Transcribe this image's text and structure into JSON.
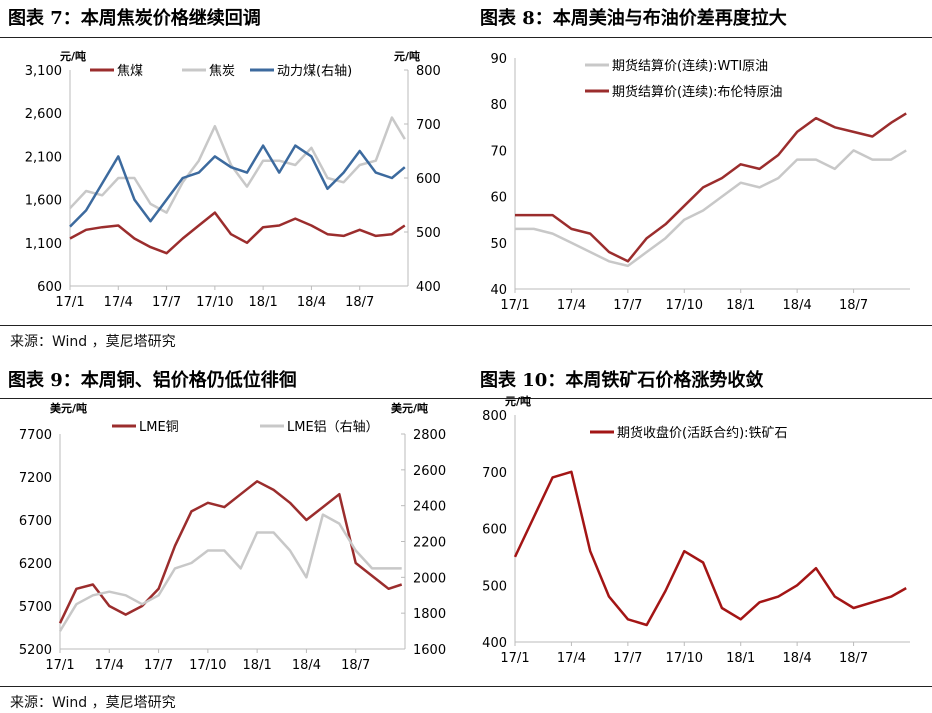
{
  "titles": [
    "图表 7：本周焦炭价格继续回调",
    "图表 8：本周美油与布油价差再度拉大",
    "图表 9：本周铜、铝价格仍低位徘徊",
    "图表 10：本周铁矿石价格涨势收敛"
  ],
  "source": "来源：Wind ，莫尼塔研究",
  "chart_data": [
    {
      "type": "line",
      "title": "图表 7：本周焦炭价格继续回调",
      "xticks": [
        "17/1",
        "17/4",
        "17/7",
        "17/10",
        "18/1",
        "18/4",
        "18/7"
      ],
      "xunit": "month index from 2017-01",
      "x": [
        0,
        1,
        2,
        3,
        4,
        5,
        6,
        7,
        8,
        9,
        10,
        11,
        12,
        13,
        14,
        15,
        16,
        17,
        18,
        19,
        20,
        20.8
      ],
      "ylabel_left": "元/吨",
      "ylabel_right": "元/吨",
      "ylim_left": [
        600,
        3100
      ],
      "ylim_right": [
        400,
        800
      ],
      "yticks_left": [
        "600",
        "1,100",
        "1,600",
        "2,100",
        "2,600",
        "3,100"
      ],
      "yticks_right": [
        "400",
        "500",
        "600",
        "700",
        "800"
      ],
      "series": [
        {
          "name": "焦煤",
          "axis": "left",
          "color": "#9b2d2d",
          "values": [
            1150,
            1250,
            1280,
            1300,
            1150,
            1050,
            980,
            1150,
            1300,
            1450,
            1200,
            1100,
            1280,
            1300,
            1380,
            1300,
            1200,
            1180,
            1250,
            1180,
            1200,
            1300
          ]
        },
        {
          "name": "焦炭",
          "axis": "left",
          "color": "#c8c8c8",
          "values": [
            1500,
            1700,
            1650,
            1850,
            1850,
            1550,
            1450,
            1800,
            2050,
            2450,
            2000,
            1750,
            2050,
            2050,
            2000,
            2200,
            1850,
            1800,
            2000,
            2050,
            2550,
            2300
          ]
        },
        {
          "name": "动力煤(右轴)",
          "axis": "right",
          "color": "#3c6a9e",
          "values": [
            510,
            540,
            590,
            640,
            560,
            520,
            560,
            600,
            610,
            640,
            620,
            610,
            660,
            610,
            660,
            640,
            580,
            610,
            650,
            610,
            600,
            620
          ]
        }
      ]
    },
    {
      "type": "line",
      "title": "图表 8：本周美油与布油价差再度拉大",
      "xticks": [
        "17/1",
        "17/4",
        "17/7",
        "17/10",
        "18/1",
        "18/4",
        "18/7"
      ],
      "x": [
        0,
        1,
        2,
        3,
        4,
        5,
        6,
        7,
        8,
        9,
        10,
        11,
        12,
        13,
        14,
        15,
        16,
        17,
        18,
        19,
        20,
        20.8
      ],
      "ylim_left": [
        40,
        90
      ],
      "yticks_left": [
        "40",
        "50",
        "60",
        "70",
        "80",
        "90"
      ],
      "series": [
        {
          "name": "期货结算价(连续):WTI原油",
          "axis": "left",
          "color": "#c8c8c8",
          "values": [
            53,
            53,
            52,
            50,
            48,
            46,
            45,
            48,
            51,
            55,
            57,
            60,
            63,
            62,
            64,
            68,
            68,
            66,
            70,
            68,
            68,
            70
          ]
        },
        {
          "name": "期货结算价(连续):布伦特原油",
          "axis": "left",
          "color": "#9b2d2d",
          "values": [
            56,
            56,
            56,
            53,
            52,
            48,
            46,
            51,
            54,
            58,
            62,
            64,
            67,
            66,
            69,
            74,
            77,
            75,
            74,
            73,
            76,
            78
          ]
        }
      ]
    },
    {
      "type": "line",
      "title": "图表 9：本周铜、铝价格仍低位徘徊",
      "xticks": [
        "17/1",
        "17/4",
        "17/7",
        "17/10",
        "18/1",
        "18/4",
        "18/7"
      ],
      "x": [
        0,
        1,
        2,
        3,
        4,
        5,
        6,
        7,
        8,
        9,
        10,
        11,
        12,
        13,
        14,
        15,
        16,
        17,
        18,
        19,
        20,
        20.8
      ],
      "ylabel_left": "美元/吨",
      "ylabel_right": "美元/吨",
      "ylim_left": [
        5200,
        7700
      ],
      "ylim_right": [
        1600,
        2800
      ],
      "yticks_left": [
        "5200",
        "5700",
        "6200",
        "6700",
        "7200",
        "7700"
      ],
      "yticks_right": [
        "1600",
        "1800",
        "2000",
        "2200",
        "2400",
        "2600",
        "2800"
      ],
      "series": [
        {
          "name": "LME铜",
          "axis": "left",
          "color": "#9b2d2d",
          "values": [
            5500,
            5900,
            5950,
            5700,
            5600,
            5700,
            5900,
            6400,
            6800,
            6900,
            6850,
            7000,
            7150,
            7050,
            6900,
            6700,
            6850,
            7000,
            6200,
            6050,
            5900,
            5950
          ]
        },
        {
          "name": "LME铝（右轴）",
          "axis": "right",
          "color": "#c8c8c8",
          "values": [
            1700,
            1850,
            1900,
            1920,
            1900,
            1850,
            1900,
            2050,
            2080,
            2150,
            2150,
            2050,
            2250,
            2250,
            2150,
            2000,
            2350,
            2300,
            2150,
            2050,
            2050,
            2050
          ]
        }
      ]
    },
    {
      "type": "line",
      "title": "图表 10：本周铁矿石价格涨势收敛",
      "xticks": [
        "17/1",
        "17/4",
        "17/7",
        "17/10",
        "18/1",
        "18/4",
        "18/7"
      ],
      "x": [
        0,
        1,
        2,
        3,
        4,
        5,
        6,
        7,
        8,
        9,
        10,
        11,
        12,
        13,
        14,
        15,
        16,
        17,
        18,
        19,
        20,
        20.8
      ],
      "ylabel_left": "元/吨",
      "ylim_left": [
        400,
        800
      ],
      "yticks_left": [
        "400",
        "500",
        "600",
        "700",
        "800"
      ],
      "series": [
        {
          "name": "期货收盘价(活跃合约):铁矿石",
          "axis": "left",
          "color": "#a31515",
          "values": [
            550,
            620,
            690,
            700,
            560,
            480,
            440,
            430,
            490,
            560,
            540,
            460,
            440,
            470,
            480,
            500,
            530,
            480,
            460,
            470,
            480,
            495
          ]
        }
      ]
    }
  ]
}
